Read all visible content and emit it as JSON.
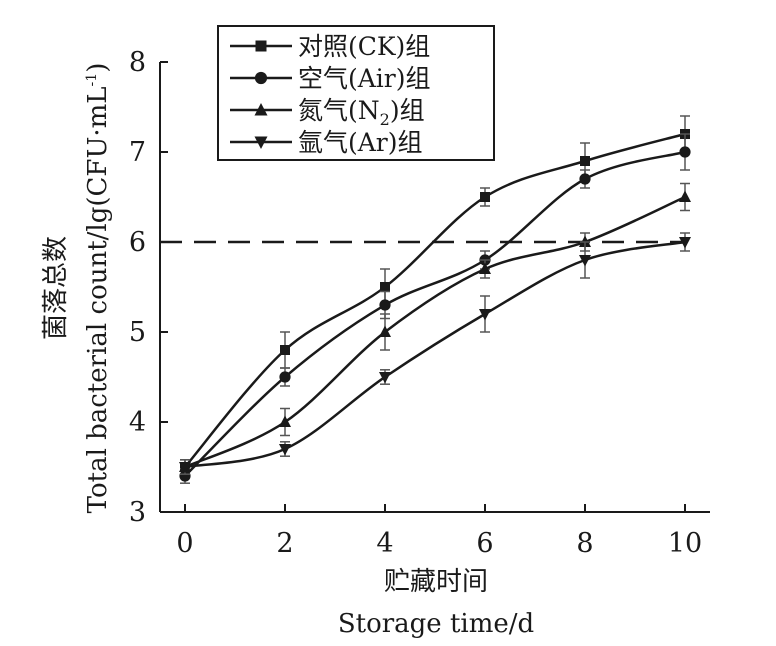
{
  "chart_data": {
    "type": "line",
    "xlabel_cn": "贮藏时间",
    "xlabel_en": "Storage  time/d",
    "ylabel_cn": "菌落总数",
    "ylabel_en_main": "Total  bacterial  count/lg(CFU·mL",
    "ylabel_en_sup": "-1",
    "ylabel_en_end": ")",
    "x": [
      0,
      2,
      4,
      6,
      8,
      10
    ],
    "xlim": [
      0,
      10
    ],
    "ylim": [
      3,
      8
    ],
    "x_ticks": [
      "0",
      "2",
      "4",
      "6",
      "8",
      "10"
    ],
    "y_ticks": [
      "3",
      "4",
      "5",
      "6",
      "7",
      "8"
    ],
    "threshold_line": 6,
    "legend_position": "top-center",
    "series": [
      {
        "name": "对照(CK)组",
        "name_main": "对照(CK)组",
        "marker": "square",
        "values": [
          3.5,
          4.8,
          5.5,
          6.5,
          6.9,
          7.2
        ],
        "errors": [
          0.08,
          0.2,
          0.2,
          0.1,
          0.2,
          0.2
        ]
      },
      {
        "name": "空气(Air)组",
        "name_main": "空气(Air)组",
        "marker": "circle",
        "values": [
          3.4,
          4.5,
          5.3,
          5.8,
          6.7,
          7.0
        ],
        "errors": [
          0.08,
          0.1,
          0.15,
          0.1,
          0.1,
          0.2
        ]
      },
      {
        "name": "氮气(N2)组",
        "name_pre": "氮气(N",
        "name_sub": "2",
        "name_post": ")组",
        "marker": "triangle-up",
        "values": [
          3.5,
          4.0,
          5.0,
          5.7,
          6.0,
          6.5
        ],
        "errors": [
          0.08,
          0.15,
          0.2,
          0.1,
          0.1,
          0.15
        ]
      },
      {
        "name": "氩气(Ar)组",
        "name_main": "氩气(Ar)组",
        "marker": "triangle-down",
        "values": [
          3.5,
          3.7,
          4.5,
          5.2,
          5.8,
          6.0
        ],
        "errors": [
          0.08,
          0.08,
          0.08,
          0.2,
          0.2,
          0.1
        ]
      }
    ]
  }
}
